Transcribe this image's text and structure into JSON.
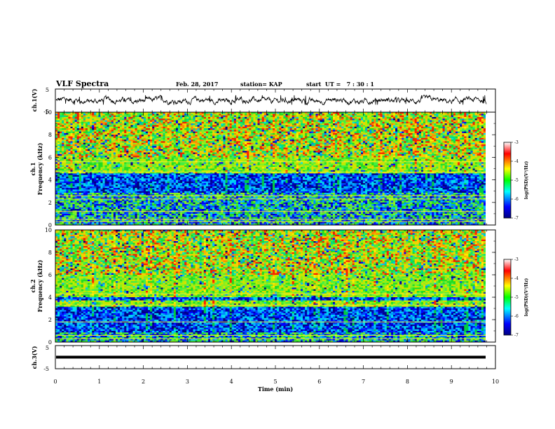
{
  "header": {
    "title": "VLF Spectra",
    "date": "Feb. 28, 2017",
    "station": "station= KAP",
    "start": "start  UT =   7 : 30 : 1"
  },
  "chart_data": {
    "type": "heatmap",
    "xlabel": "Time (min)",
    "xlim": [
      0,
      10
    ],
    "xticks": [
      "0",
      "1",
      "2",
      "3",
      "4",
      "5",
      "6",
      "7",
      "8",
      "9",
      "10"
    ],
    "waveform_ch1": {
      "ylabel": "ch.1(V)",
      "ylim": [
        -5,
        5
      ],
      "yticks": [
        "5",
        "-5"
      ],
      "mean": 0,
      "range": [
        -1.8,
        2.3
      ]
    },
    "spectrogram_ch1": {
      "ylabel_ch": "ch.1",
      "ylabel": "Frequency (kHz)",
      "ylim": [
        0,
        10
      ],
      "yticks": [
        "0",
        "2",
        "4",
        "6",
        "8",
        "10"
      ],
      "colorbar": {
        "label": "log(PSD)(V²/Hz)",
        "range": [
          -7,
          -3
        ],
        "ticks": [
          "-3",
          "-4",
          "-5",
          "-6",
          "-7"
        ]
      },
      "dark_band_khz": [
        [
          2.9,
          4.5
        ]
      ],
      "horizontal_lines_khz": [
        5.6,
        4.7,
        2.6,
        2.3,
        1.2,
        0.5,
        0.3
      ]
    },
    "spectrogram_ch2": {
      "ylabel_ch": "ch.2",
      "ylabel": "Frequency (kHz)",
      "ylim": [
        0,
        10
      ],
      "yticks": [
        "0",
        "2",
        "4",
        "6",
        "8",
        "10"
      ],
      "colorbar": {
        "label": "log(PSD)(V²/Hz)",
        "range": [
          -7,
          -3
        ],
        "ticks": [
          "-3",
          "-4",
          "-5",
          "-6",
          "-7"
        ]
      },
      "dark_band_khz": [
        [
          0.9,
          3.2
        ],
        [
          3.7,
          4.0
        ]
      ],
      "horizontal_lines_khz": [
        4.3,
        3.3,
        1.8,
        0.6,
        0.3
      ]
    },
    "waveform_ch3": {
      "ylabel": "ch.3(V)",
      "ylim": [
        -5,
        5
      ],
      "yticks": [
        "5",
        "-5"
      ],
      "level": 0
    }
  }
}
